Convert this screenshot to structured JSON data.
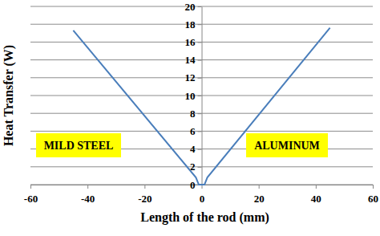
{
  "chart_data": {
    "type": "line",
    "x_label": "Length of the rod (mm)",
    "y_label": "Heat Transfer (W)",
    "x": [
      -45,
      -2,
      -1,
      1,
      2,
      45
    ],
    "values": [
      17.3,
      0.8,
      0,
      0,
      0.8,
      17.6
    ],
    "color": "#4a7ebb",
    "xlim": [
      -60,
      60
    ],
    "xticks": [
      -60,
      -40,
      -20,
      0,
      20,
      40,
      60
    ],
    "ylim": [
      0,
      20
    ],
    "yticks": [
      0,
      2,
      4,
      6,
      8,
      10,
      12,
      14,
      16,
      18,
      20
    ],
    "grid": true,
    "annotations": [
      "MILD STEEL",
      "ALUMINUM"
    ]
  }
}
